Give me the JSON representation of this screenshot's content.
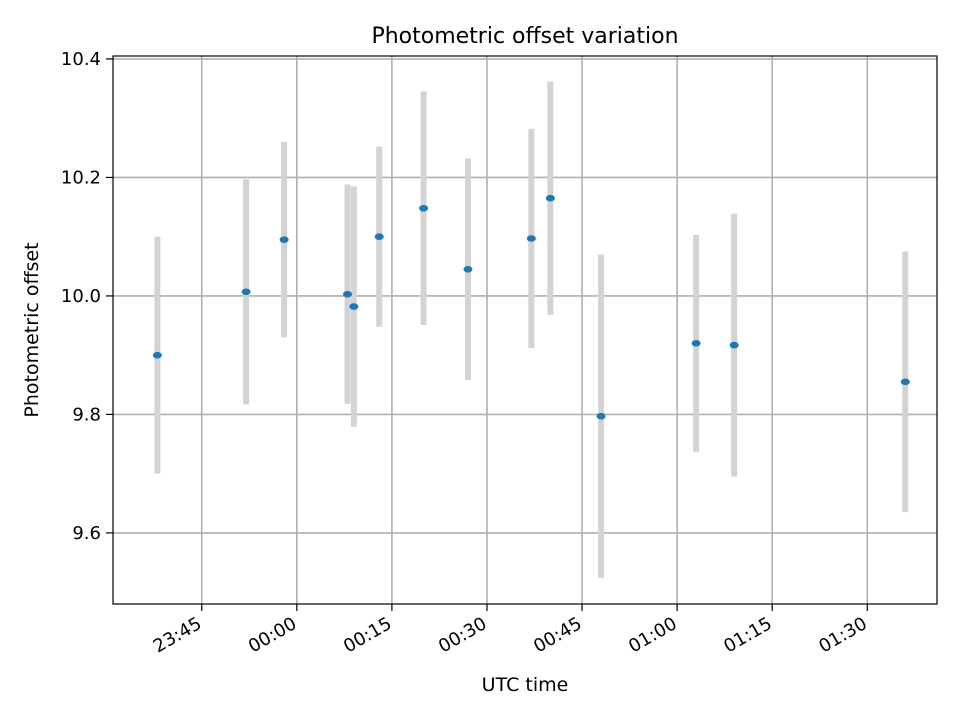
{
  "chart_data": {
    "type": "scatter",
    "title": "Photometric offset variation",
    "xlabel": "UTC time",
    "ylabel": "Photometric offset",
    "grid": true,
    "ylim": [
      9.48,
      10.405
    ],
    "xlim": [
      "23:31",
      "01:41"
    ],
    "x_ticks": [
      "23:45",
      "00:00",
      "00:15",
      "00:30",
      "00:45",
      "01:00",
      "01:15",
      "01:30"
    ],
    "y_ticks": [
      "9.6",
      "9.8",
      "10.0",
      "10.2",
      "10.4"
    ],
    "marker_color": "#1f77b4",
    "errorbar_color": "#d3d3d3",
    "series": [
      {
        "x": [
          "23:38",
          "23:52",
          "23:58",
          "00:08",
          "00:09",
          "00:13",
          "00:20",
          "00:27",
          "00:37",
          "00:40",
          "00:48",
          "01:03",
          "01:09",
          "01:36"
        ],
        "y": [
          9.9,
          10.007,
          10.095,
          10.003,
          9.982,
          10.1,
          10.148,
          10.045,
          10.097,
          10.165,
          9.797,
          9.92,
          9.917,
          9.855
        ],
        "err": [
          0.2,
          0.19,
          0.165,
          0.185,
          0.203,
          0.152,
          0.197,
          0.187,
          0.185,
          0.197,
          0.273,
          0.183,
          0.222,
          0.22
        ]
      }
    ]
  }
}
